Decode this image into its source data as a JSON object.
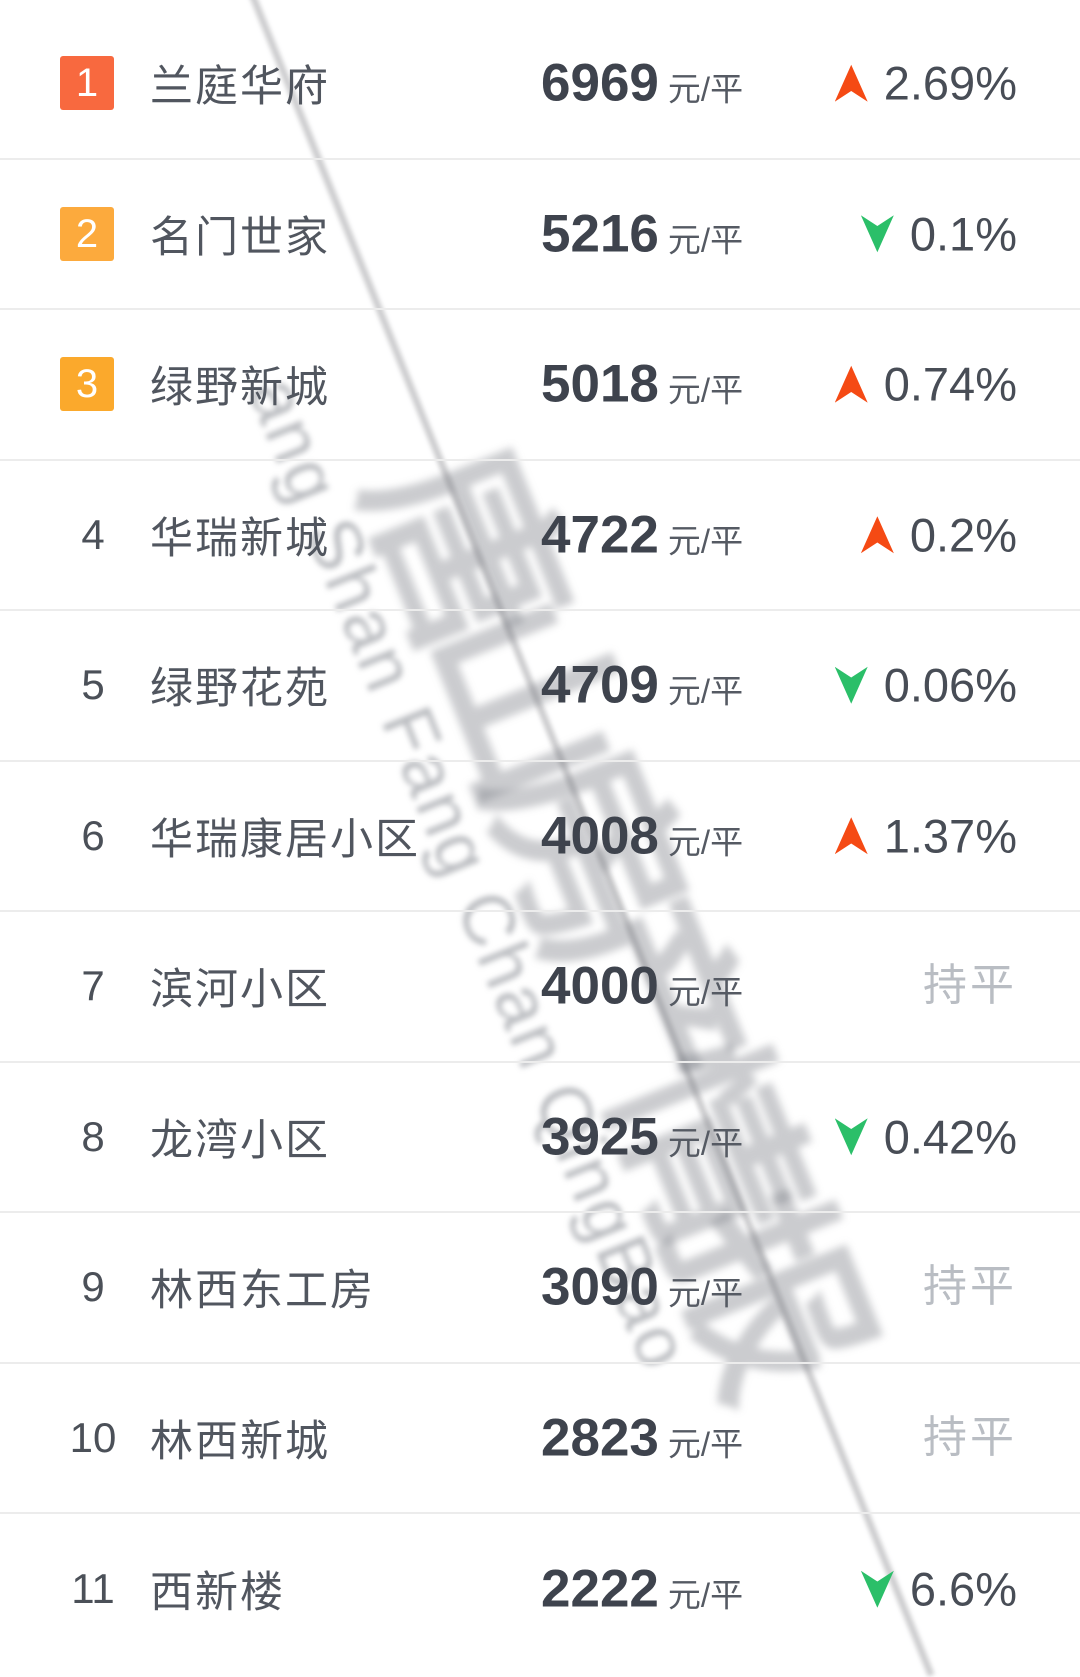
{
  "watermark": {
    "latin_text": "ang Shan Fang Chan QingBao",
    "cjk_text": "唐山房产情报",
    "color": "#81858c"
  },
  "list": {
    "unit_label": "元/平",
    "flat_label": "持平",
    "rows": [
      {
        "rank": "1",
        "badge": true,
        "badge_color": "#f8693f",
        "name": "兰庭华府",
        "price": "6969",
        "change_text": "2.69%",
        "direction": "up"
      },
      {
        "rank": "2",
        "badge": true,
        "badge_color": "#fcaa3d",
        "name": "名门世家",
        "price": "5216",
        "change_text": "0.1%",
        "direction": "down"
      },
      {
        "rank": "3",
        "badge": true,
        "badge_color": "#fba92c",
        "name": "绿野新城",
        "price": "5018",
        "change_text": "0.74%",
        "direction": "up"
      },
      {
        "rank": "4",
        "badge": false,
        "badge_color": "",
        "name": "华瑞新城",
        "price": "4722",
        "change_text": "0.2%",
        "direction": "up"
      },
      {
        "rank": "5",
        "badge": false,
        "badge_color": "",
        "name": "绿野花苑",
        "price": "4709",
        "change_text": "0.06%",
        "direction": "down"
      },
      {
        "rank": "6",
        "badge": false,
        "badge_color": "",
        "name": "华瑞康居小区",
        "price": "4008",
        "change_text": "1.37%",
        "direction": "up"
      },
      {
        "rank": "7",
        "badge": false,
        "badge_color": "",
        "name": "滨河小区",
        "price": "4000",
        "change_text": "持平",
        "direction": "flat"
      },
      {
        "rank": "8",
        "badge": false,
        "badge_color": "",
        "name": "龙湾小区",
        "price": "3925",
        "change_text": "0.42%",
        "direction": "down"
      },
      {
        "rank": "9",
        "badge": false,
        "badge_color": "",
        "name": "林西东工房",
        "price": "3090",
        "change_text": "持平",
        "direction": "flat"
      },
      {
        "rank": "10",
        "badge": false,
        "badge_color": "",
        "name": "林西新城",
        "price": "2823",
        "change_text": "持平",
        "direction": "flat"
      },
      {
        "rank": "11",
        "badge": false,
        "badge_color": "",
        "name": "西新楼",
        "price": "2222",
        "change_text": "6.6%",
        "direction": "down"
      }
    ],
    "colors": {
      "up_arrow": "#f54a14",
      "down_arrow": "#2bbf69",
      "flat_text": "#b9bdc3",
      "price_text": "#3e434d",
      "name_text": "#51565f",
      "unit_text": "#555a63",
      "percent_text": "#484d56",
      "rank_text": "#4b5058",
      "separator": "#ececec"
    }
  }
}
